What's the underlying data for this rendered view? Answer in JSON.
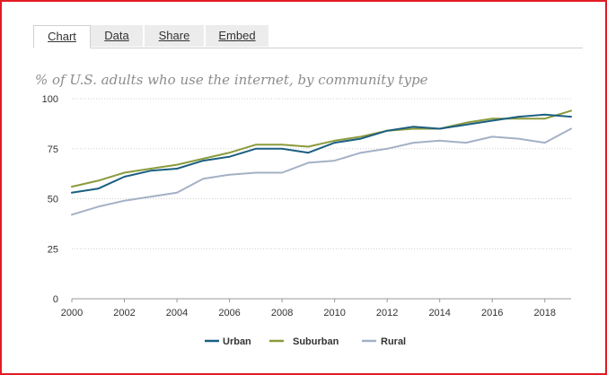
{
  "tabs": [
    {
      "label": "Chart",
      "active": true
    },
    {
      "label": "Data",
      "active": false
    },
    {
      "label": "Share",
      "active": false
    },
    {
      "label": "Embed",
      "active": false
    }
  ],
  "chart_data": {
    "type": "line",
    "title": "% of U.S. adults who use the internet, by community type",
    "xlabel": "",
    "ylabel": "",
    "x": [
      2000,
      2001,
      2002,
      2003,
      2004,
      2005,
      2006,
      2007,
      2008,
      2009,
      2010,
      2011,
      2012,
      2013,
      2014,
      2015,
      2016,
      2017,
      2018,
      2019
    ],
    "xlim": [
      2000,
      2019
    ],
    "ylim": [
      0,
      100
    ],
    "x_ticks": [
      2000,
      2002,
      2004,
      2006,
      2008,
      2010,
      2012,
      2014,
      2016,
      2018
    ],
    "y_ticks": [
      0,
      25,
      50,
      75,
      100
    ],
    "grid": "horizontal dotted",
    "legend_position": "bottom-center",
    "series": [
      {
        "name": "Urban",
        "color": "#1b5f82",
        "values": [
          53,
          55,
          61,
          64,
          65,
          69,
          71,
          75,
          75,
          73,
          78,
          80,
          84,
          86,
          85,
          87,
          89,
          91,
          92,
          91
        ]
      },
      {
        "name": "Suburban",
        "color": "#8b9a3c",
        "values": [
          56,
          59,
          63,
          65,
          67,
          70,
          73,
          77,
          77,
          76,
          79,
          81,
          84,
          85,
          85,
          88,
          90,
          90,
          90,
          94
        ]
      },
      {
        "name": "Rural",
        "color": "#a3b1c6",
        "values": [
          42,
          46,
          49,
          51,
          53,
          60,
          62,
          63,
          63,
          68,
          69,
          73,
          75,
          78,
          79,
          78,
          81,
          80,
          78,
          85
        ]
      }
    ]
  }
}
